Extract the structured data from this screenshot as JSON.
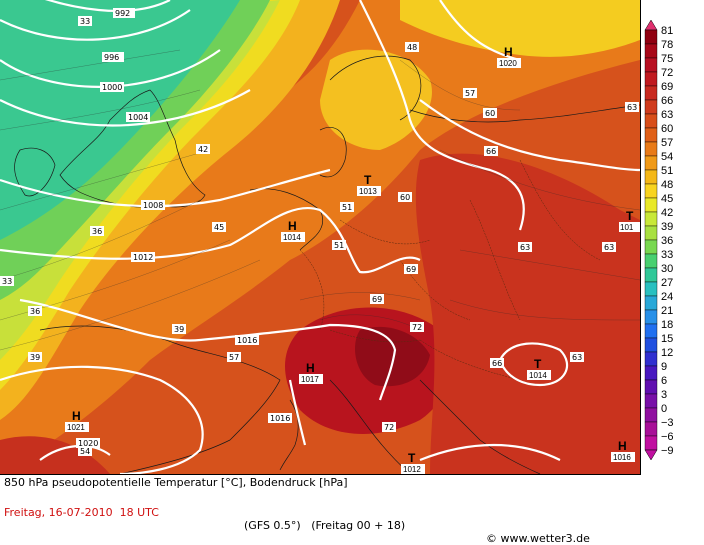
{
  "header": {
    "line1": "850 hPa pseudopotentielle Temperatur [°C], Bodendruck [hPa]",
    "date": "Freitag, 16-07-2010  18 UTC",
    "model": "(GFS 0.5°)   (Freitag 00 + 18)",
    "copyright": "© www.wetter3.de"
  },
  "legend": {
    "values": [
      "81",
      "78",
      "75",
      "72",
      "69",
      "66",
      "63",
      "60",
      "57",
      "54",
      "51",
      "48",
      "45",
      "42",
      "39",
      "36",
      "33",
      "30",
      "27",
      "24",
      "21",
      "18",
      "15",
      "12",
      "9",
      "6",
      "3",
      "0",
      "−3",
      "−6",
      "−9"
    ],
    "colors": [
      "#e0306e",
      "#900010",
      "#a80818",
      "#b81022",
      "#c01a20",
      "#c82a20",
      "#d03c1e",
      "#d84e1a",
      "#e06018",
      "#e87a18",
      "#f09a18",
      "#f4b818",
      "#f8d420",
      "#e8e828",
      "#c8e838",
      "#a8e040",
      "#78d850",
      "#48d070",
      "#30c898",
      "#28c0c0",
      "#28a8d8",
      "#2890e8",
      "#2070f0",
      "#2050e0",
      "#3030d0",
      "#4818c0",
      "#6010b0",
      "#7810a8",
      "#9010a0",
      "#a81098",
      "#c010a0"
    ]
  },
  "pressure_centers": [
    {
      "type": "H",
      "value": "1020"
    },
    {
      "type": "H",
      "value": "1014"
    },
    {
      "type": "T",
      "value": "1013"
    },
    {
      "type": "H",
      "value": "1017"
    },
    {
      "type": "T",
      "value": "1014"
    },
    {
      "type": "H",
      "value": "1021"
    },
    {
      "type": "T",
      "value": "1012"
    },
    {
      "type": "H",
      "value": "1016"
    },
    {
      "type": "T",
      "value": "101"
    }
  ],
  "isobar_labels": [
    "992",
    "996",
    "1000",
    "1004",
    "1008",
    "1012",
    "1016",
    "1016",
    "1020"
  ],
  "temp_labels": [
    "33",
    "36",
    "39",
    "42",
    "45",
    "48",
    "51",
    "54",
    "57",
    "60",
    "63",
    "66",
    "69",
    "72"
  ]
}
